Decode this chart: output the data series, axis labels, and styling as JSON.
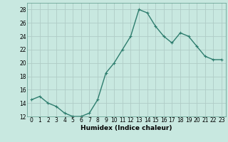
{
  "x": [
    0,
    1,
    2,
    3,
    4,
    5,
    6,
    7,
    8,
    9,
    10,
    11,
    12,
    13,
    14,
    15,
    16,
    17,
    18,
    19,
    20,
    21,
    22,
    23
  ],
  "y": [
    14.5,
    15.0,
    14.0,
    13.5,
    12.5,
    12.0,
    12.0,
    12.5,
    14.5,
    18.5,
    20.0,
    22.0,
    24.0,
    28.0,
    27.5,
    25.5,
    24.0,
    23.0,
    24.5,
    24.0,
    22.5,
    21.0,
    20.5,
    20.5
  ],
  "line_color": "#2e7d6e",
  "marker_color": "#2e7d6e",
  "bg_color": "#c8e8e0",
  "grid_color": "#b0ccc6",
  "xlabel": "Humidex (Indice chaleur)",
  "ylim": [
    12,
    29
  ],
  "xlim": [
    -0.5,
    23.5
  ],
  "yticks": [
    12,
    14,
    16,
    18,
    20,
    22,
    24,
    26,
    28
  ],
  "xtick_labels": [
    "0",
    "1",
    "2",
    "3",
    "4",
    "5",
    "6",
    "7",
    "8",
    "9",
    "10",
    "11",
    "12",
    "13",
    "14",
    "15",
    "16",
    "17",
    "18",
    "19",
    "20",
    "21",
    "22",
    "23"
  ],
  "tick_fontsize": 5.5,
  "xlabel_fontsize": 6.5,
  "marker_size": 2.5,
  "line_width": 1.0
}
